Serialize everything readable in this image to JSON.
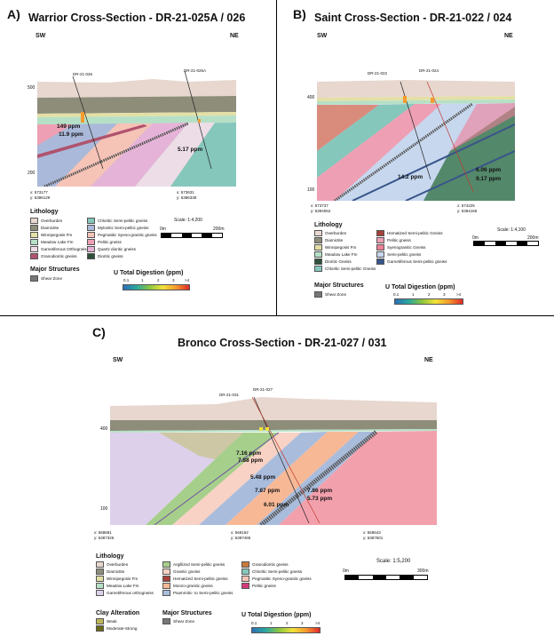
{
  "panelA": {
    "label": "A)",
    "title": "Warrior Cross-Section - DR-21-025A / 026",
    "sw": "SW",
    "ne": "NE",
    "depth": [
      "500",
      "200"
    ],
    "drill1": "DR-21-026",
    "drill2": "DR-21-025A",
    "val1": "149 ppm",
    "val2": "11.9 ppm",
    "val3": "5.17 ppm",
    "coord1x": "x: 573177",
    "coord1y": "y: 6386129",
    "coord2x": "x: 573631",
    "coord2y": "y: 6386338",
    "lithology_title": "Lithology",
    "leg_left": [
      "Overburden",
      "Diamictite",
      "Winnipegosis Fm",
      "Meadow Lake Fm",
      "Garnetiferous Orthogneiss",
      "Granodioritic gneiss"
    ],
    "leg_right": [
      "Chloritic Semi-pelitic gneiss",
      "Mylonitic Semi-pelitic gneiss",
      "Pegmatitic Syeno-granitic gneiss",
      "Pelitic gneiss",
      "Quartz dioritic gneiss",
      "Dioritic gneiss"
    ],
    "struct_title": "Major Structures",
    "struct_item": "Shear Zone",
    "u_title": "U Total Digestion (ppm)",
    "u_ticks": [
      "0.1",
      "1",
      "2",
      "3",
      ">4"
    ],
    "scale": "Scale: 1:4,200",
    "scale0": "0m",
    "scale1": "200m"
  },
  "panelB": {
    "label": "B)",
    "title": "Saint Cross-Section - DR-21-022 / 024",
    "sw": "SW",
    "ne": "NE",
    "depth": [
      "400",
      "100"
    ],
    "drill1": "DR-21-022",
    "drill2": "DR-21-024",
    "val1": "14.2 ppm",
    "val2": "6.06 ppm",
    "val3": "9.17 ppm",
    "coord1x": "x: 573737",
    "coord1y": "y: 6394052",
    "coord2x": "x: 574225",
    "coord2y": "y: 6394165",
    "lithology_title": "Lithology",
    "leg_left": [
      "Overburden",
      "Diamictite",
      "Winnipegosis Fm",
      "Meadow Lake Fm",
      "Dioritic Gneiss",
      "Chloritic Semi-pelitic Gneiss"
    ],
    "leg_right": [
      "Hematized Semi-pelitic Gneiss",
      "Pelitic gneiss",
      "Syenogranitic Gneiss",
      "Semi-pelitic gneiss",
      "Garnetiferous Semi-pelitic gneiss"
    ],
    "struct_title": "Major Structures",
    "struct_item": "Shear Zone",
    "u_title": "U Total Digestion (ppm)",
    "u_ticks": [
      "0.1",
      "1",
      "2",
      "3",
      ">4"
    ],
    "scale": "Scale: 1:4,100",
    "scale0": "0m",
    "scale1": "200m"
  },
  "panelC": {
    "label": "C)",
    "title": "Bronco Cross-Section - DR-21-027 / 031",
    "sw": "SW",
    "ne": "NE",
    "depth": [
      "400",
      "100"
    ],
    "drill1": "DR-21-031",
    "drill2": "DR-21-027",
    "vals": [
      "7.16 ppm",
      "7.88 ppm",
      "5.48 ppm",
      "7.87 ppm",
      "7.86 ppm",
      "5.73 ppm",
      "6.01 ppm"
    ],
    "coord1x": "x: 568681",
    "coord1y": "y: 6387326",
    "coord2x": "x: 569162",
    "coord2y": "y: 6387465",
    "coord3x": "x: 569643",
    "coord3y": "y: 6387601",
    "lithology_title": "Lithology",
    "leg_col1": [
      "Overburden",
      "Diamictite",
      "Winnipegosis Fm",
      "Meadow Lake Fm",
      "Garnetiferous orthogneiss"
    ],
    "leg_col2": [
      "Argillized Semi-pelitic gneiss",
      "Granitic gneiss",
      "Hematized Semi-pelitic gneiss",
      "Monzo-granitic gneiss",
      "Psammitic- to Semi-pelitic gneiss"
    ],
    "leg_col3": [
      "Granodioritic gneiss",
      "Chloritic Semi-pelitic gneiss",
      "Pegmatitic Syeno-granitic gneiss",
      "Pelitic gneiss"
    ],
    "clay_title": "Clay Alteration",
    "clay_items": [
      "Weak",
      "Moderate-Strong"
    ],
    "struct_title": "Major Structures",
    "struct_item": "Shear Zone",
    "u_title": "U Total Digestion (ppm)",
    "u_ticks": [
      "0.1",
      "1",
      "2",
      "3",
      ">4"
    ],
    "scale": "Scale: 1:5,200",
    "scale0": "0m",
    "scale1": "300m"
  },
  "colors": {
    "overburden": "#e7d7cf",
    "diamictite": "#8d8d7a",
    "winnipegosis": "#e3dfa6",
    "meadow": "#b6e0c6",
    "orthogneiss": "#eddde6",
    "granodioritic": "#b0536e",
    "chloritic": "#86c7bc",
    "mylonitic": "#aab9d9",
    "pegmatitic": "#f6c3b7",
    "pelitic": "#ee9fb4",
    "quartzdioritic": "#e6b3d8",
    "dioritic": "#2f4f3a",
    "hematized": "#a6403a",
    "syenogranitic": "#ef7f97",
    "semipelitic": "#c7d7ee",
    "garnetiferous_sp": "#39558a",
    "argillized": "#a7cf8c",
    "granitic": "#f8d2c4",
    "monzo": "#f7b896",
    "psammitic": "#a9bcdc",
    "garnet_ortho": "#ddd0ea",
    "clay_weak": "#bfb65a",
    "clay_strong": "#6b6b1e",
    "shear": "#777777"
  }
}
